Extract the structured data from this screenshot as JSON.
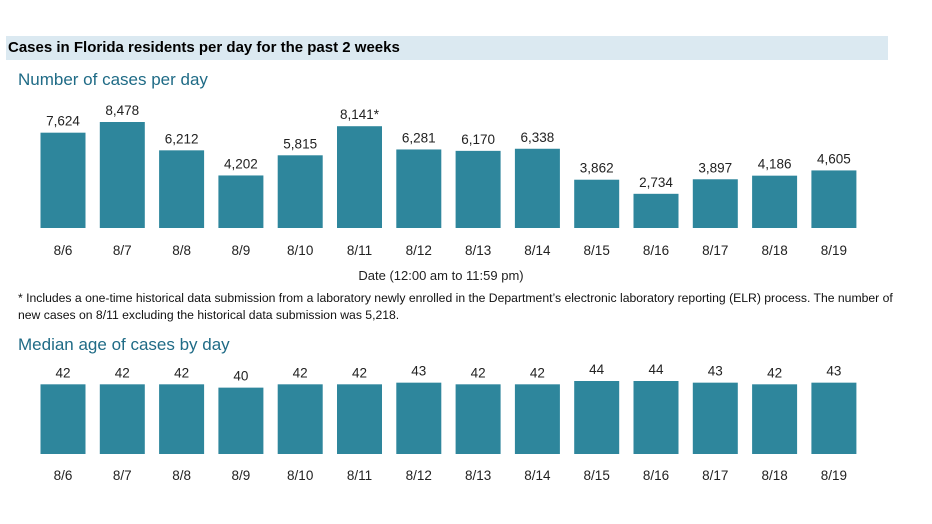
{
  "header": {
    "title": "Cases in Florida residents per day for the past 2 weeks"
  },
  "chart1": {
    "title": "Number of cases per day",
    "xlabel": "Date (12:00 am to 11:59 pm)"
  },
  "footnote": "* Includes a one-time historical data submission from a laboratory newly enrolled in the Department’s electronic laboratory reporting (ELR) process. The number of new cases on 8/11 excluding the historical data submission was 5,218.",
  "chart2": {
    "title": "Median age of cases by day"
  },
  "colors": {
    "bar": "#2e869c",
    "title": "#1f6b86",
    "header_band": "#dbe9f1"
  },
  "chart_data": [
    {
      "type": "bar",
      "title": "Number of cases per day",
      "xlabel": "Date (12:00 am to 11:59 pm)",
      "ylabel": "",
      "categories": [
        "8/6",
        "8/7",
        "8/8",
        "8/9",
        "8/10",
        "8/11",
        "8/12",
        "8/13",
        "8/14",
        "8/15",
        "8/16",
        "8/17",
        "8/18",
        "8/19"
      ],
      "values": [
        7624,
        8478,
        6212,
        4202,
        5815,
        8141,
        6281,
        6170,
        6338,
        3862,
        2734,
        3897,
        4186,
        4605
      ],
      "labels": [
        "7,624",
        "8,478",
        "6,212",
        "4,202",
        "5,815",
        "8,141*",
        "6,281",
        "6,170",
        "6,338",
        "3,862",
        "2,734",
        "3,897",
        "4,186",
        "4,605"
      ],
      "ylim": [
        0,
        8478
      ],
      "grid": false
    },
    {
      "type": "bar",
      "title": "Median age of cases by day",
      "categories": [
        "8/6",
        "8/7",
        "8/8",
        "8/9",
        "8/10",
        "8/11",
        "8/12",
        "8/13",
        "8/14",
        "8/15",
        "8/16",
        "8/17",
        "8/18",
        "8/19"
      ],
      "values": [
        42,
        42,
        42,
        40,
        42,
        42,
        43,
        42,
        42,
        44,
        44,
        43,
        42,
        43
      ],
      "labels": [
        "42",
        "42",
        "42",
        "40",
        "42",
        "42",
        "43",
        "42",
        "42",
        "44",
        "44",
        "43",
        "42",
        "43"
      ],
      "ylim": [
        0,
        44
      ],
      "grid": false
    }
  ]
}
